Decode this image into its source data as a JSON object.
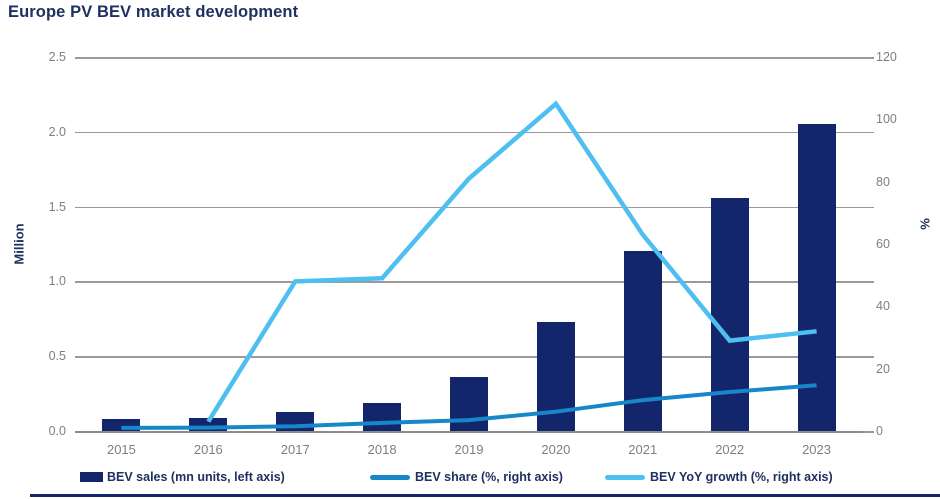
{
  "title": "Europe PV BEV market development",
  "colors": {
    "navy": "#13266b",
    "medium_blue": "#1787c9",
    "light_blue": "#4dbff0",
    "heading": "#1f3161",
    "gridline": "#9a9a9a",
    "axis_line": "#8c8c8c",
    "tick_label": "#7f7f7f"
  },
  "chart_data": {
    "type": "bar+line combo",
    "title": "Europe PV BEV market development",
    "categories": [
      "2015",
      "2016",
      "2017",
      "2018",
      "2019",
      "2020",
      "2021",
      "2022",
      "2023"
    ],
    "series": [
      {
        "name": "BEV sales (mn units, left axis)",
        "type": "bar",
        "axis": "left",
        "color_key": "navy",
        "values": [
          0.08,
          0.09,
          0.13,
          0.19,
          0.36,
          0.73,
          1.2,
          1.56,
          2.05
        ]
      },
      {
        "name": "BEV share (%, right axis)",
        "type": "line",
        "axis": "right",
        "color_key": "medium_blue",
        "values": [
          1.0,
          1.1,
          1.5,
          2.6,
          3.5,
          6.2,
          9.9,
          12.5,
          14.7
        ]
      },
      {
        "name": "BEV YoY growth (%, right axis)",
        "type": "line",
        "axis": "right",
        "color_key": "light_blue",
        "values": [
          null,
          3,
          48,
          49,
          81,
          105,
          63,
          29,
          32
        ]
      }
    ],
    "left_axis": {
      "title": "Million",
      "min": 0,
      "max": 2.5,
      "ticks": [
        "2.5",
        "2.0",
        "1.5",
        "1.0",
        "0.5",
        "0.0"
      ]
    },
    "right_axis": {
      "title": "%",
      "min": 0,
      "max": 120,
      "ticks": [
        "120",
        "100",
        "80",
        "60",
        "40",
        "20",
        "0"
      ]
    },
    "grid": true,
    "legend_position": "bottom"
  }
}
